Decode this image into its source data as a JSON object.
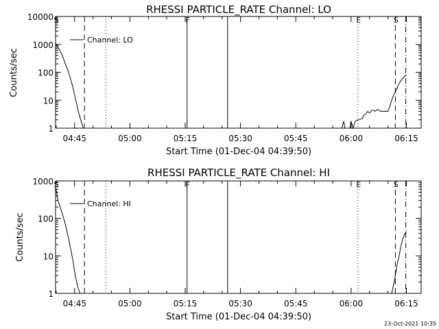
{
  "chart_data": [
    {
      "type": "line",
      "title": "RHESSI PARTICLE_RATE Channel: LO",
      "xlabel": "Start Time (01-Dec-04 04:39:50)",
      "ylabel": "Counts/sec",
      "yscale": "log",
      "ylim": [
        1,
        10000
      ],
      "xlim": [
        "04:39:50",
        "06:19:00"
      ],
      "x_ticks": [
        "04:45",
        "05:00",
        "05:15",
        "05:30",
        "05:45",
        "06:00",
        "06:15"
      ],
      "y_ticks": [
        "1",
        "10",
        "100",
        "1000",
        "10000"
      ],
      "legend": "Channel: LO",
      "markers": [
        {
          "time": "04:39:50",
          "label": "S",
          "style": "none"
        },
        {
          "time": "04:47:40",
          "label": "",
          "style": "dashed"
        },
        {
          "time": "04:53:30",
          "label": "",
          "style": "dotted"
        },
        {
          "time": "05:15:30",
          "label": "F",
          "style": "solid"
        },
        {
          "time": "05:26:30",
          "label": "",
          "style": "solid"
        },
        {
          "time": "06:01:50",
          "label": "E",
          "style": "dotted"
        },
        {
          "time": "06:12:00",
          "label": "S",
          "style": "dashed"
        },
        {
          "time": "06:14:50",
          "label": "",
          "style": "dashdot"
        }
      ],
      "series": [
        {
          "points": [
            [
              "04:39:50",
              1100
            ],
            [
              "04:40:30",
              800
            ],
            [
              "04:41:30",
              450
            ],
            [
              "04:42:30",
              200
            ],
            [
              "04:43:30",
              90
            ],
            [
              "04:44:30",
              30
            ],
            [
              "04:45:20",
              10
            ],
            [
              "04:46:00",
              4
            ],
            [
              "04:46:40",
              2
            ],
            [
              "04:47:20",
              1
            ]
          ]
        },
        {
          "points": [
            [
              "05:57:30",
              1
            ],
            [
              "05:58:00",
              1.8
            ],
            [
              "05:58:20",
              1
            ],
            [
              "05:59:40",
              1
            ],
            [
              "06:00:00",
              1.8
            ],
            [
              "06:00:30",
              1
            ],
            [
              "06:01:10",
              1.8
            ],
            [
              "06:02:00",
              2
            ],
            [
              "06:03:00",
              2.2
            ],
            [
              "06:03:30",
              3
            ],
            [
              "06:04:00",
              3.3
            ],
            [
              "06:04:30",
              4
            ],
            [
              "06:05:00",
              3.5
            ],
            [
              "06:05:30",
              4.2
            ],
            [
              "06:06:00",
              4.5
            ],
            [
              "06:06:30",
              4
            ],
            [
              "06:07:00",
              4.6
            ],
            [
              "06:07:30",
              4.5
            ],
            [
              "06:08:00",
              4
            ],
            [
              "06:10:00",
              4
            ],
            [
              "06:10:30",
              6
            ],
            [
              "06:11:00",
              10
            ],
            [
              "06:11:30",
              15
            ],
            [
              "06:12:00",
              20
            ],
            [
              "06:12:30",
              28
            ],
            [
              "06:13:00",
              40
            ],
            [
              "06:13:30",
              50
            ],
            [
              "06:14:00",
              60
            ],
            [
              "06:14:30",
              72
            ],
            [
              "06:15:00",
              80
            ]
          ]
        }
      ]
    },
    {
      "type": "line",
      "title": "RHESSI PARTICLE_RATE Channel: HI",
      "xlabel": "Start Time (01-Dec-04 04:39:50)",
      "ylabel": "Counts/sec",
      "yscale": "log",
      "ylim": [
        1,
        1000
      ],
      "xlim": [
        "04:39:50",
        "06:19:00"
      ],
      "x_ticks": [
        "04:45",
        "05:00",
        "05:15",
        "05:30",
        "05:45",
        "06:00",
        "06:15"
      ],
      "y_ticks": [
        "1",
        "10",
        "100",
        "1000"
      ],
      "legend": "Channel: HI",
      "markers": [
        {
          "time": "04:39:50",
          "label": "S",
          "style": "none"
        },
        {
          "time": "04:47:40",
          "label": "",
          "style": "dashed"
        },
        {
          "time": "04:53:30",
          "label": "",
          "style": "dotted"
        },
        {
          "time": "05:15:30",
          "label": "F",
          "style": "solid"
        },
        {
          "time": "05:26:30",
          "label": "",
          "style": "solid"
        },
        {
          "time": "06:01:50",
          "label": "E",
          "style": "dotted"
        },
        {
          "time": "06:12:00",
          "label": "S",
          "style": "dashed"
        },
        {
          "time": "06:14:50",
          "label": "",
          "style": "dashdot"
        }
      ],
      "series": [
        {
          "points": [
            [
              "04:39:50",
              700
            ],
            [
              "04:40:30",
              300
            ],
            [
              "04:41:30",
              150
            ],
            [
              "04:42:30",
              70
            ],
            [
              "04:43:30",
              25
            ],
            [
              "04:44:30",
              8
            ],
            [
              "04:45:10",
              3
            ],
            [
              "04:45:50",
              1.5
            ],
            [
              "04:46:30",
              1
            ]
          ]
        },
        {
          "points": [
            [
              "06:11:00",
              1
            ],
            [
              "06:11:40",
              2
            ],
            [
              "06:12:00",
              3
            ],
            [
              "06:12:30",
              6
            ],
            [
              "06:13:00",
              10
            ],
            [
              "06:13:30",
              18
            ],
            [
              "06:14:00",
              28
            ],
            [
              "06:14:30",
              38
            ],
            [
              "06:15:00",
              45
            ]
          ]
        }
      ]
    }
  ],
  "footer_timestamp": "23-Oct-2021 10:35"
}
